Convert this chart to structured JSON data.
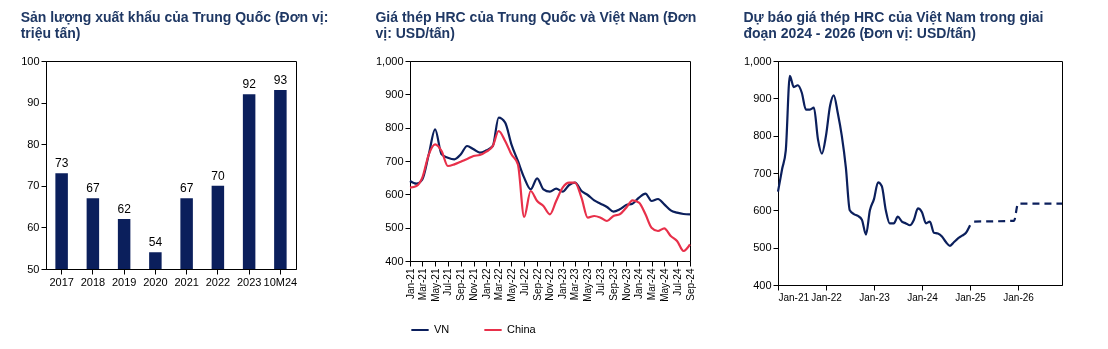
{
  "chart_data": [
    {
      "type": "bar",
      "title": "Sản lượng xuất khẩu của Trung Quốc (Đơn vị: triệu tấn)",
      "categories": [
        "2017",
        "2018",
        "2019",
        "2020",
        "2021",
        "2022",
        "2023",
        "10M24"
      ],
      "values": [
        73,
        67,
        62,
        54,
        67,
        70,
        92,
        93
      ],
      "color": "#0b1f5c",
      "ylim": [
        50,
        100
      ],
      "yticks": [
        50,
        60,
        70,
        80,
        90,
        100
      ],
      "data_labels": true,
      "grid": false
    },
    {
      "type": "line",
      "title": "Giá thép HRC của Trung Quốc và Việt Nam (Đơn vị: USD/tấn)",
      "x": [
        "2021-01",
        "2021-02",
        "2021-03",
        "2021-04",
        "2021-05",
        "2021-06",
        "2021-07",
        "2021-08",
        "2021-09",
        "2021-10",
        "2021-11",
        "2021-12",
        "2022-01",
        "2022-02",
        "2022-03",
        "2022-04",
        "2022-05",
        "2022-06",
        "2022-07",
        "2022-08",
        "2022-09",
        "2022-10",
        "2022-11",
        "2022-12",
        "2023-01",
        "2023-02",
        "2023-03",
        "2023-04",
        "2023-05",
        "2023-06",
        "2023-07",
        "2023-08",
        "2023-09",
        "2023-10",
        "2023-11",
        "2023-12",
        "2024-01",
        "2024-02",
        "2024-03",
        "2024-04",
        "2024-05",
        "2024-06",
        "2024-07",
        "2024-08",
        "2024-09"
      ],
      "series": [
        {
          "name": "VN",
          "color": "#0b1f5c",
          "values": [
            640,
            632,
            645,
            720,
            795,
            720,
            710,
            705,
            720,
            745,
            735,
            725,
            732,
            745,
            830,
            815,
            750,
            700,
            650,
            615,
            648,
            615,
            608,
            617,
            608,
            628,
            635,
            610,
            598,
            582,
            572,
            562,
            548,
            555,
            568,
            572,
            590,
            602,
            580,
            586,
            570,
            552,
            545,
            541,
            540
          ]
        },
        {
          "name": "China",
          "color": "#e8304a",
          "values": [
            620,
            625,
            650,
            720,
            750,
            730,
            685,
            690,
            698,
            706,
            715,
            718,
            728,
            745,
            790,
            760,
            720,
            690,
            532,
            610,
            580,
            565,
            540,
            580,
            620,
            635,
            635,
            590,
            530,
            535,
            530,
            520,
            535,
            540,
            560,
            582,
            575,
            540,
            500,
            490,
            498,
            475,
            460,
            430,
            450
          ]
        }
      ],
      "xlim": [
        "2021-01",
        "2024-09"
      ],
      "xticks": [
        {
          "value": "2021-01",
          "label": "Jan-21"
        },
        {
          "value": "2021-03",
          "label": "Mar-21"
        },
        {
          "value": "2021-05",
          "label": "May-21"
        },
        {
          "value": "2021-07",
          "label": "Jul-21"
        },
        {
          "value": "2021-09",
          "label": "Sep-21"
        },
        {
          "value": "2021-11",
          "label": "Nov-21"
        },
        {
          "value": "2022-01",
          "label": "Jan-22"
        },
        {
          "value": "2022-03",
          "label": "Mar-22"
        },
        {
          "value": "2022-05",
          "label": "May-22"
        },
        {
          "value": "2022-07",
          "label": "Jul-22"
        },
        {
          "value": "2022-09",
          "label": "Sep-22"
        },
        {
          "value": "2022-11",
          "label": "Nov-22"
        },
        {
          "value": "2023-01",
          "label": "Jan-23"
        },
        {
          "value": "2023-03",
          "label": "Mar-23"
        },
        {
          "value": "2023-05",
          "label": "May-23"
        },
        {
          "value": "2023-07",
          "label": "Jul-23"
        },
        {
          "value": "2023-09",
          "label": "Sep-23"
        },
        {
          "value": "2023-11",
          "label": "Nov-23"
        },
        {
          "value": "2024-01",
          "label": "Jan-24"
        },
        {
          "value": "2024-03",
          "label": "Mar-24"
        },
        {
          "value": "2024-05",
          "label": "May-24"
        },
        {
          "value": "2024-07",
          "label": "Jul-24"
        },
        {
          "value": "2024-09",
          "label": "Sep-24"
        }
      ],
      "ylim": [
        400,
        1000
      ],
      "yticks": [
        400,
        500,
        600,
        700,
        800,
        900,
        {
          "value": 1000,
          "label": "1,000"
        }
      ],
      "grid": false,
      "legend": "bottom",
      "line_style": "solid"
    },
    {
      "type": "line",
      "title": "Dự báo giá thép HRC của Việt Nam trong giai đoạn 2024 - 2026 (Đơn vị: USD/tấn)",
      "series": [
        {
          "color": "#0b1f5c",
          "line_style": "solid",
          "x": [
            "2021-01",
            "2021-02",
            "2021-03",
            "2021-04",
            "2021-05",
            "2021-06",
            "2021-07",
            "2021-08",
            "2021-09",
            "2021-10",
            "2021-11",
            "2021-12",
            "2022-01",
            "2022-02",
            "2022-03",
            "2022-04",
            "2022-05",
            "2022-06",
            "2022-07",
            "2022-08",
            "2022-09",
            "2022-10",
            "2022-11",
            "2022-12",
            "2023-01",
            "2023-02",
            "2023-03",
            "2023-04",
            "2023-05",
            "2023-06",
            "2023-07",
            "2023-08",
            "2023-09",
            "2023-10",
            "2023-11",
            "2023-12",
            "2024-01",
            "2024-02",
            "2024-03",
            "2024-04",
            "2024-05",
            "2024-06",
            "2024-07",
            "2024-08",
            "2024-09",
            "2024-10",
            "2024-11",
            "2024-12",
            "2025-01"
          ],
          "values": [
            650,
            710,
            760,
            960,
            930,
            935,
            915,
            870,
            870,
            875,
            790,
            752,
            800,
            880,
            908,
            860,
            800,
            715,
            600,
            590,
            585,
            575,
            535,
            600,
            630,
            675,
            665,
            600,
            565,
            565,
            583,
            570,
            565,
            560,
            575,
            605,
            595,
            565,
            570,
            540,
            538,
            530,
            515,
            505,
            515,
            525,
            532,
            540,
            560
          ]
        },
        {
          "color": "#0b1f5c",
          "line_style": "dashed",
          "x": [
            "2025-02",
            "2025-12",
            "2026-01",
            "2026-12"
          ],
          "values": [
            570,
            572,
            618,
            618
          ]
        }
      ],
      "xlim": [
        "2021-01",
        "2026-12"
      ],
      "xticks": [
        {
          "value": "2021-01",
          "label": "Jan-21"
        },
        {
          "value": "2022-01",
          "label": "Jan-22"
        },
        {
          "value": "2023-01",
          "label": "Jan-23"
        },
        {
          "value": "2024-01",
          "label": "Jan-24"
        },
        {
          "value": "2025-01",
          "label": "Jan-25"
        },
        {
          "value": "2026-01",
          "label": "Jan-26"
        }
      ],
      "ylim": [
        400,
        1000
      ],
      "yticks": [
        400,
        500,
        600,
        700,
        800,
        900,
        {
          "value": 1000,
          "label": "1,000"
        }
      ],
      "grid": false
    }
  ]
}
